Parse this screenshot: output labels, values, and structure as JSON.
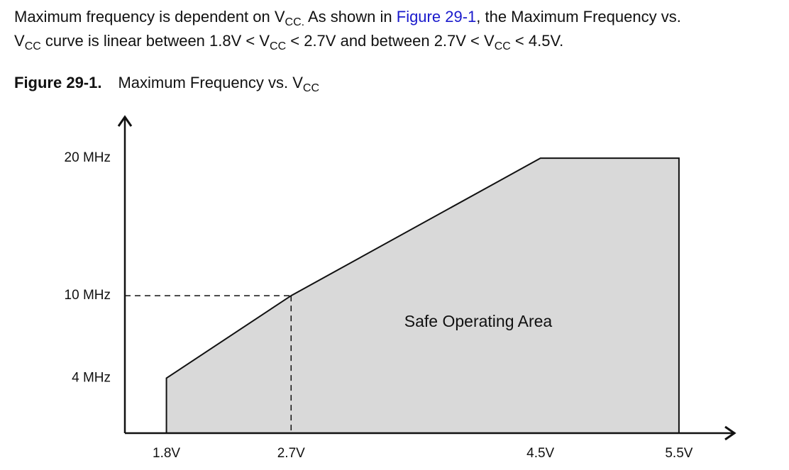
{
  "paragraph": [
    "Maximum frequency is dependent on V",
    "CC.",
    " As shown in ",
    "Figure 29-1",
    ", the Maximum Frequency vs.",
    "V",
    "CC",
    " curve is linear between 1.8V < V",
    "CC",
    " < 2.7V and between 2.7V < V",
    "CC",
    " < 4.5V."
  ],
  "figure": {
    "label": "Figure 29-1.",
    "title": "Maximum Frequency vs. V",
    "title_sub": "CC"
  },
  "chart_data": {
    "type": "area",
    "x": [
      1.8,
      2.7,
      4.5,
      5.5
    ],
    "values": [
      4,
      10,
      20,
      20
    ],
    "color": "#d9d9d9",
    "xlim": [
      1.5,
      5.9
    ],
    "ylim": [
      0,
      23
    ],
    "xticks": [
      {
        "value": 1.8,
        "label": "1.8V"
      },
      {
        "value": 2.7,
        "label": "2.7V"
      },
      {
        "value": 4.5,
        "label": "4.5V"
      },
      {
        "value": 5.5,
        "label": "5.5V"
      }
    ],
    "yticks": [
      {
        "value": 4,
        "label": "4 MHz"
      },
      {
        "value": 10,
        "label": "10 MHz"
      },
      {
        "value": 20,
        "label": "20 MHz"
      }
    ],
    "annotation": "Safe Operating Area"
  }
}
